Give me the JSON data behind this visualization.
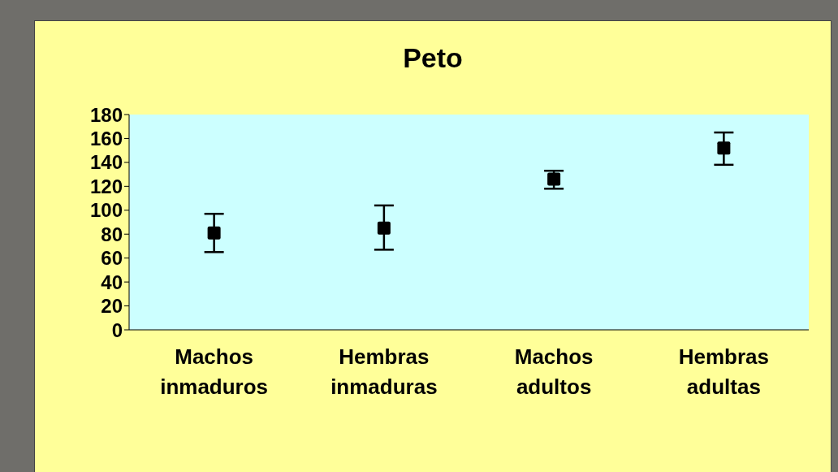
{
  "chart_data": {
    "type": "scatter",
    "title": "Peto",
    "categories": [
      "Machos inmaduros",
      "Hembras inmaduras",
      "Machos adultos",
      "Hembras adultas"
    ],
    "values": [
      81,
      85,
      126,
      152
    ],
    "errors": [
      [
        65,
        97
      ],
      [
        67,
        104
      ],
      [
        118,
        133
      ],
      [
        138,
        165
      ]
    ],
    "color": "#000000",
    "marker": "square",
    "ylim": [
      0,
      180
    ],
    "yticks": [
      0,
      20,
      40,
      60,
      80,
      100,
      120,
      140,
      160,
      180
    ],
    "grid": false
  }
}
